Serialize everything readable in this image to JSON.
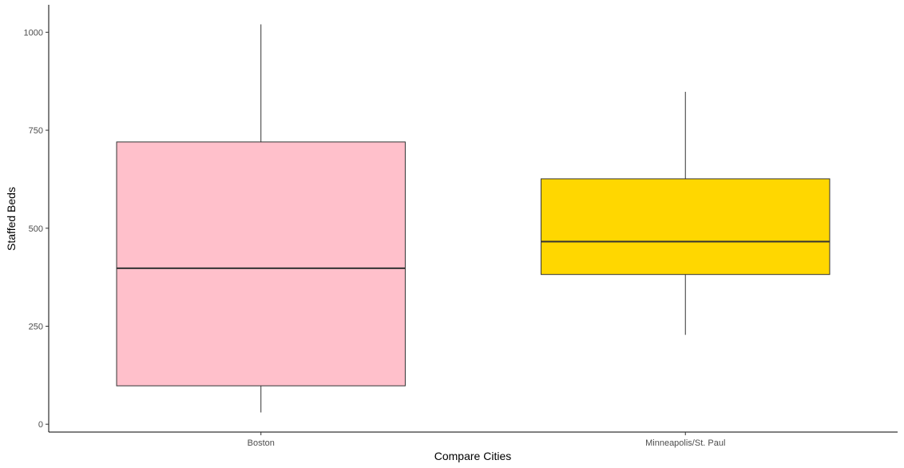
{
  "chart_data": {
    "type": "boxplot",
    "xlabel": "Compare Cities",
    "ylabel": "Staffed Beds",
    "ylim": [
      -20,
      1070
    ],
    "yticks": [
      0,
      250,
      500,
      750,
      1000
    ],
    "ytick_labels": [
      "0",
      "250",
      "500",
      "750",
      "1000"
    ],
    "grid": false,
    "legend": "none",
    "categories": [
      "Boston",
      "Minneapolis/St. Paul"
    ],
    "boxes": [
      {
        "category": "Boston",
        "whisker_low": 30,
        "q1": 98,
        "median": 398,
        "q3": 720,
        "whisker_high": 1020,
        "fill": "#FFC0CB"
      },
      {
        "category": "Minneapolis/St. Paul",
        "whisker_low": 228,
        "q1": 382,
        "median": 466,
        "q3": 626,
        "whisker_high": 848,
        "fill": "#FFD700"
      }
    ],
    "colors": {
      "axis": "#000000",
      "box_outline": "#333333",
      "whisker": "#333333",
      "tick_label": "#4d4d4d"
    }
  }
}
